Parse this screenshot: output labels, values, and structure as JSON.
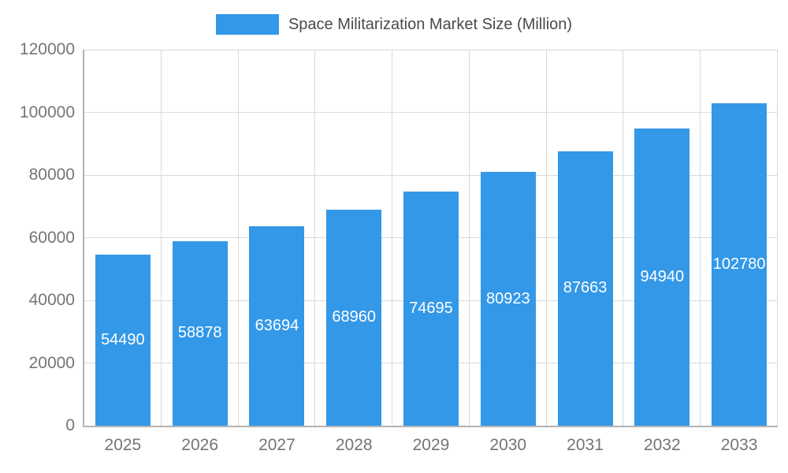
{
  "legend": {
    "label": "Space Militarization Market Size (Million)"
  },
  "chart_data": {
    "type": "bar",
    "title": "Space Militarization Market Size (Million)",
    "categories": [
      "2025",
      "2026",
      "2027",
      "2028",
      "2029",
      "2030",
      "2031",
      "2032",
      "2033"
    ],
    "values": [
      54490,
      58878,
      63694,
      68960,
      74695,
      80923,
      87663,
      94940,
      102780
    ],
    "xlabel": "",
    "ylabel": "",
    "ylim": [
      0,
      120000
    ],
    "yticks": [
      0,
      20000,
      40000,
      60000,
      80000,
      100000,
      120000
    ],
    "grid": true,
    "legend_position": "top",
    "bar_color": "#3398e8",
    "value_label_color": "#ffffff",
    "axis_text_color": "#757575"
  }
}
